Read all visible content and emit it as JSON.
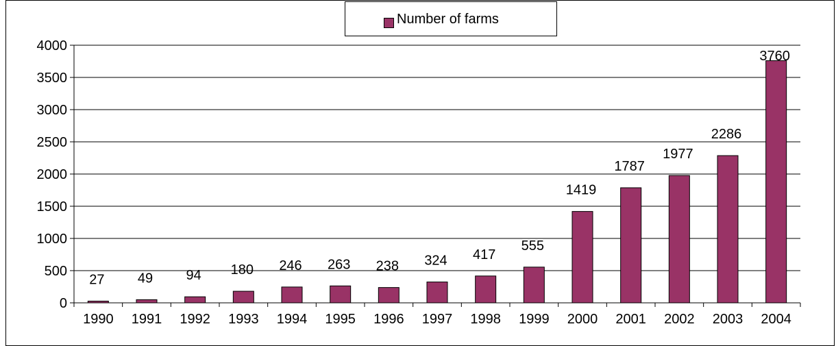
{
  "chart_data": {
    "type": "bar",
    "categories": [
      "1990",
      "1991",
      "1992",
      "1993",
      "1994",
      "1995",
      "1996",
      "1997",
      "1998",
      "1999",
      "2000",
      "2001",
      "2002",
      "2003",
      "2004"
    ],
    "series": [
      {
        "name": "Number of farms",
        "values": [
          27,
          49,
          94,
          180,
          246,
          263,
          238,
          324,
          417,
          555,
          1419,
          1787,
          1977,
          2286,
          3760
        ],
        "color": "#993366"
      }
    ],
    "data_labels": [
      "27",
      "49",
      "94",
      "180",
      "246",
      "263",
      "238",
      "324",
      "417",
      "555",
      "1419",
      "1787",
      "1977",
      "2286",
      "3760"
    ],
    "y_ticks": [
      "0",
      "500",
      "1000",
      "1500",
      "2000",
      "2500",
      "3000",
      "3500",
      "4000"
    ],
    "ylim": [
      0,
      4000
    ],
    "ytick_step": 500,
    "grid": true,
    "legend_position": "top-center",
    "title": "",
    "xlabel": "",
    "ylabel": ""
  }
}
